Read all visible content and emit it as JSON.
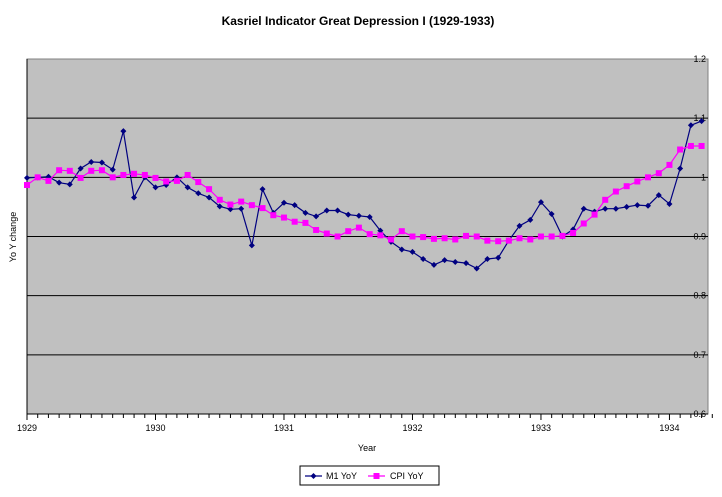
{
  "chart_data": {
    "type": "line",
    "title": "Kasriel Indicator Great Depression I (1929-1933)",
    "xlabel": "Year",
    "ylabel": "Yo Y change",
    "xlim": [
      1929.0,
      1934.3
    ],
    "ylim": [
      0.6,
      1.2
    ],
    "x_ticks": [
      "1929",
      "1930",
      "1931",
      "1932",
      "1933",
      "1934"
    ],
    "y_ticks": [
      "1.2",
      "1.1",
      "1",
      "0.9",
      "0.8",
      "0.7",
      "0.6"
    ],
    "grid": "horizontal",
    "legend_position": "bottom",
    "colors": {
      "plot_bg": "#c0c0c0",
      "m1": "#000080",
      "cpi": "#ff00ff"
    },
    "series": [
      {
        "name": "M1 YoY",
        "color": "#000080",
        "marker": "diamond",
        "x": [
          1929.0,
          1929.083,
          1929.167,
          1929.25,
          1929.333,
          1929.417,
          1929.5,
          1929.583,
          1929.667,
          1929.75,
          1929.833,
          1929.917,
          1930.0,
          1930.083,
          1930.167,
          1930.25,
          1930.333,
          1930.417,
          1930.5,
          1930.583,
          1930.667,
          1930.75,
          1930.833,
          1930.917,
          1931.0,
          1931.083,
          1931.167,
          1931.25,
          1931.333,
          1931.417,
          1931.5,
          1931.583,
          1931.667,
          1931.75,
          1931.833,
          1931.917,
          1932.0,
          1932.083,
          1932.167,
          1932.25,
          1932.333,
          1932.417,
          1932.5,
          1932.583,
          1932.667,
          1932.75,
          1932.833,
          1932.917,
          1933.0,
          1933.083,
          1933.167,
          1933.25,
          1933.333,
          1933.417,
          1933.5,
          1933.583,
          1933.667,
          1933.75,
          1933.833,
          1933.917,
          1934.0,
          1934.083,
          1934.167,
          1934.25
        ],
        "values": [
          0.999,
          1.0,
          1.001,
          0.991,
          0.988,
          1.015,
          1.026,
          1.025,
          1.013,
          1.078,
          0.966,
          1.0,
          0.983,
          0.987,
          1.0,
          0.983,
          0.973,
          0.966,
          0.951,
          0.946,
          0.947,
          0.885,
          0.98,
          0.94,
          0.957,
          0.953,
          0.94,
          0.934,
          0.944,
          0.944,
          0.937,
          0.935,
          0.933,
          0.91,
          0.891,
          0.878,
          0.874,
          0.862,
          0.852,
          0.86,
          0.857,
          0.855,
          0.846,
          0.862,
          0.864,
          0.893,
          0.918,
          0.928,
          0.958,
          0.938,
          0.9,
          0.912,
          0.947,
          0.942,
          0.947,
          0.947,
          0.95,
          0.953,
          0.952,
          0.97,
          0.955,
          1.015,
          1.088,
          1.095
        ]
      },
      {
        "name": "CPI YoY",
        "color": "#ff00ff",
        "marker": "square",
        "x": [
          1929.0,
          1929.083,
          1929.167,
          1929.25,
          1929.333,
          1929.417,
          1929.5,
          1929.583,
          1929.667,
          1929.75,
          1929.833,
          1929.917,
          1930.0,
          1930.083,
          1930.167,
          1930.25,
          1930.333,
          1930.417,
          1930.5,
          1930.583,
          1930.667,
          1930.75,
          1930.833,
          1930.917,
          1931.0,
          1931.083,
          1931.167,
          1931.25,
          1931.333,
          1931.417,
          1931.5,
          1931.583,
          1931.667,
          1931.75,
          1931.833,
          1931.917,
          1932.0,
          1932.083,
          1932.167,
          1932.25,
          1932.333,
          1932.417,
          1932.5,
          1932.583,
          1932.667,
          1932.75,
          1932.833,
          1932.917,
          1933.0,
          1933.083,
          1933.167,
          1933.25,
          1933.333,
          1933.417,
          1933.5,
          1933.583,
          1933.667,
          1933.75,
          1933.833,
          1933.917,
          1934.0,
          1934.083,
          1934.167,
          1934.25
        ],
        "values": [
          0.987,
          1.0,
          0.994,
          1.012,
          1.011,
          0.999,
          1.011,
          1.012,
          1.0,
          1.004,
          1.006,
          1.004,
          0.999,
          0.993,
          0.994,
          1.004,
          0.992,
          0.98,
          0.962,
          0.954,
          0.959,
          0.953,
          0.948,
          0.936,
          0.932,
          0.925,
          0.923,
          0.911,
          0.905,
          0.9,
          0.909,
          0.915,
          0.904,
          0.902,
          0.895,
          0.909,
          0.9,
          0.899,
          0.896,
          0.897,
          0.895,
          0.901,
          0.9,
          0.893,
          0.892,
          0.893,
          0.897,
          0.895,
          0.9,
          0.9,
          0.901,
          0.906,
          0.922,
          0.937,
          0.962,
          0.976,
          0.985,
          0.993,
          1.0,
          1.007,
          1.021,
          1.047,
          1.053,
          1.053
        ]
      }
    ]
  }
}
